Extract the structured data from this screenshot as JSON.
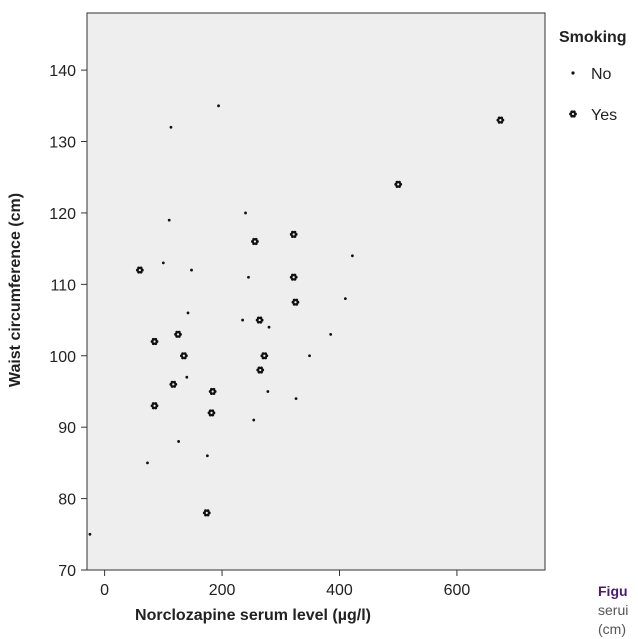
{
  "chart_data": {
    "type": "scatter",
    "title": "",
    "xlabel": "Norclozapine serum level (µg/l)",
    "ylabel": "Waist circumference (cm)",
    "xlim": [
      -30,
      750
    ],
    "ylim": [
      70,
      148
    ],
    "x_ticks": [
      0,
      200,
      400,
      600
    ],
    "y_ticks": [
      70,
      80,
      90,
      100,
      110,
      120,
      130,
      140
    ],
    "grid": false,
    "background": "#eeeeee",
    "legend": {
      "title": "Smoking",
      "placement": "right",
      "entries": [
        {
          "label": "No",
          "marker": "dot"
        },
        {
          "label": "Yes",
          "marker": "flower"
        }
      ]
    },
    "series": [
      {
        "name": "No",
        "marker": "dot",
        "color": "#111111",
        "points": [
          [
            194,
            135
          ],
          [
            113,
            132
          ],
          [
            110,
            119
          ],
          [
            240,
            120
          ],
          [
            100,
            113
          ],
          [
            148,
            112
          ],
          [
            245,
            111
          ],
          [
            422,
            114
          ],
          [
            142,
            106
          ],
          [
            410,
            108
          ],
          [
            235,
            105
          ],
          [
            280,
            104
          ],
          [
            385,
            103
          ],
          [
            349,
            100
          ],
          [
            140,
            97
          ],
          [
            278,
            95
          ],
          [
            326,
            94
          ],
          [
            254,
            91
          ],
          [
            126,
            88
          ],
          [
            175,
            86
          ],
          [
            73,
            85
          ],
          [
            -25,
            75
          ]
        ]
      },
      {
        "name": "Yes",
        "marker": "flower",
        "color": "#111111",
        "points": [
          [
            674,
            133
          ],
          [
            500,
            124
          ],
          [
            322,
            117
          ],
          [
            256,
            116
          ],
          [
            60,
            112
          ],
          [
            322,
            111
          ],
          [
            325,
            107.5
          ],
          [
            264,
            105
          ],
          [
            125,
            103
          ],
          [
            85,
            102
          ],
          [
            272,
            100
          ],
          [
            135,
            100
          ],
          [
            265,
            98
          ],
          [
            117,
            96
          ],
          [
            184,
            95
          ],
          [
            85,
            93
          ],
          [
            182,
            92
          ],
          [
            174,
            78
          ]
        ]
      }
    ]
  },
  "caption": {
    "title": "Figu",
    "line1": "serui",
    "line2": "(cm)"
  }
}
